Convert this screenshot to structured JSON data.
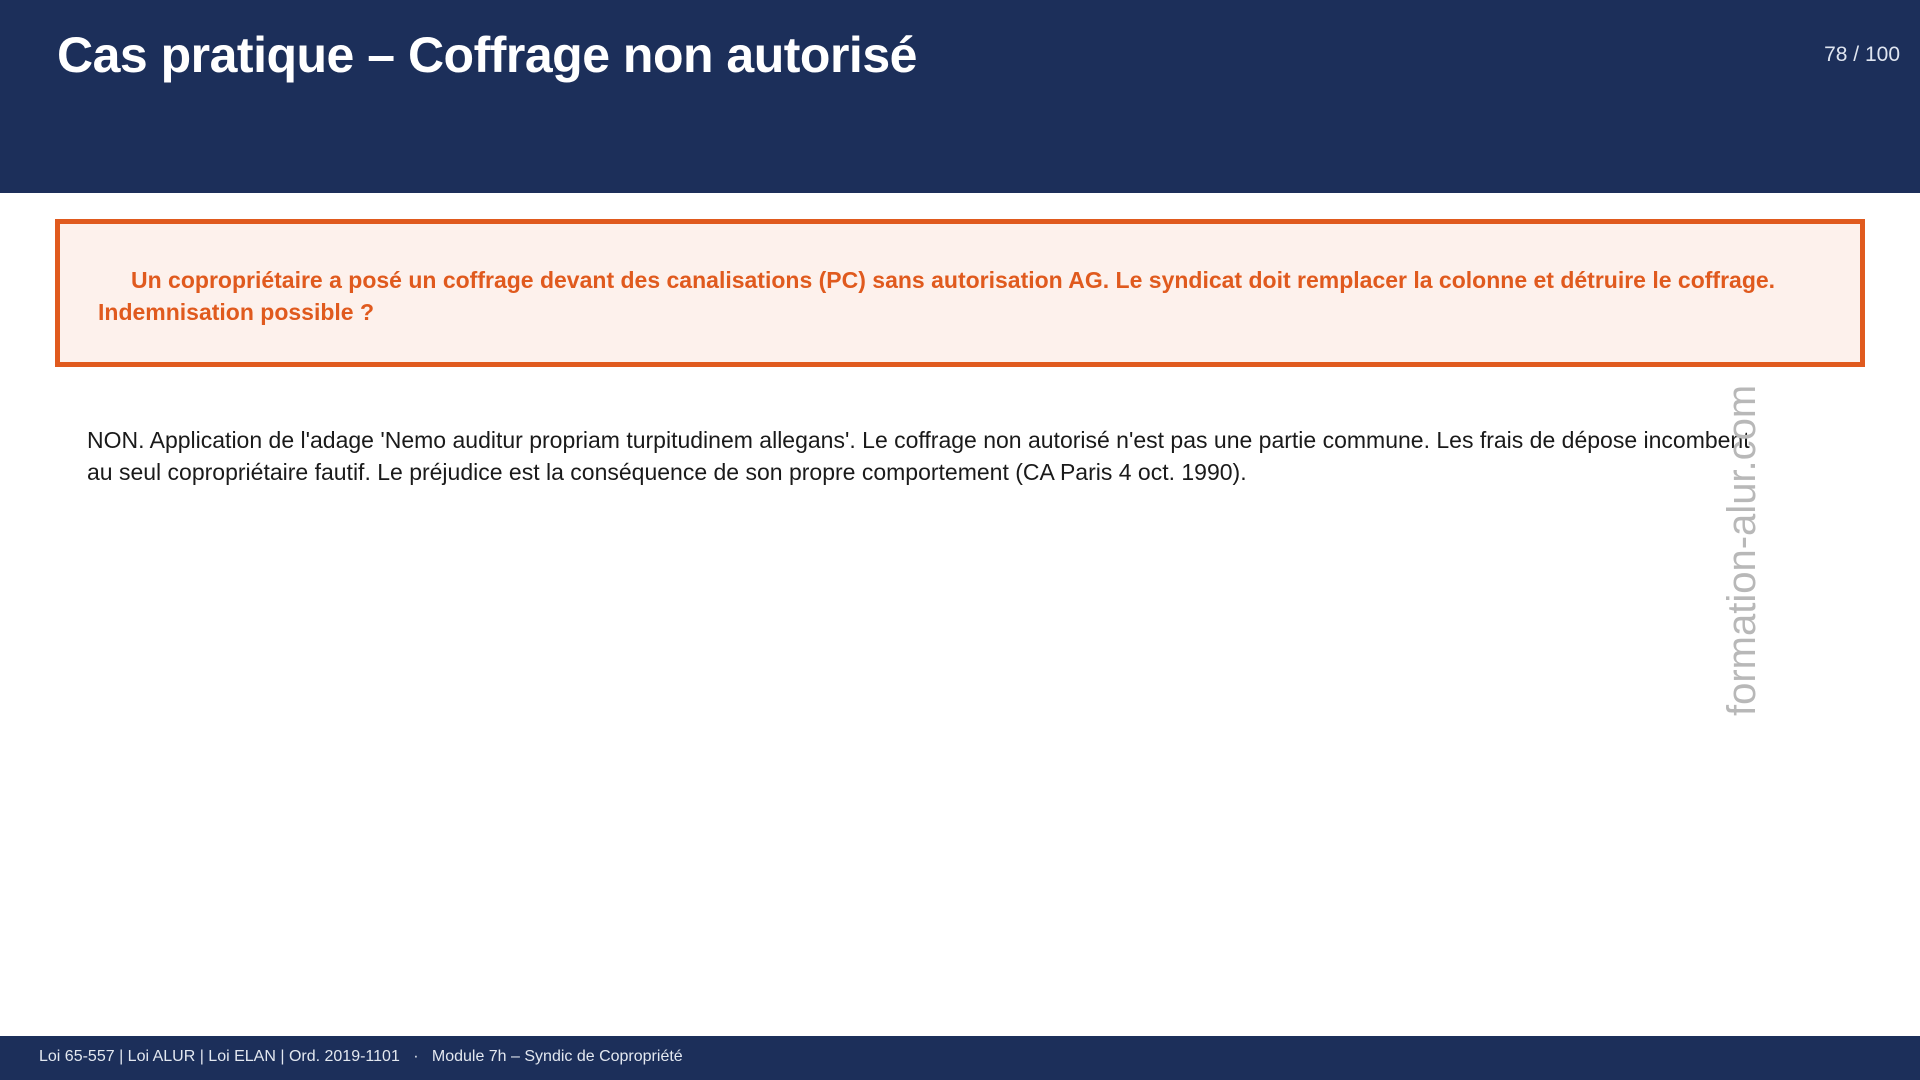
{
  "header": {
    "title": "Cas pratique – Coffrage non autorisé",
    "page_number": "78 / 100"
  },
  "question": "Un copropriétaire a posé un coffrage devant des canalisations (PC) sans autorisation AG. Le syndicat doit remplacer la colonne et détruire le coffrage. Indemnisation possible ?",
  "answer": "NON. Application de l'adage 'Nemo auditur propriam turpitudinem allegans'. Le coffrage non autorisé n'est pas une partie commune. Les frais de dépose incombent au seul copropriétaire fautif. Le préjudice est la conséquence de son propre comportement (CA Paris 4 oct. 1990).",
  "watermark": "formation-alur.com",
  "footer": {
    "refs": "Loi 65-557 | Loi ALUR | Loi ELAN | Ord. 2019-1101",
    "separator": "·",
    "module": "Module 7h – Syndic de Copropriété"
  },
  "colors": {
    "navy": "#1c2f5a",
    "accent": "#e05a1e",
    "box_bg": "#fdf1ec"
  }
}
